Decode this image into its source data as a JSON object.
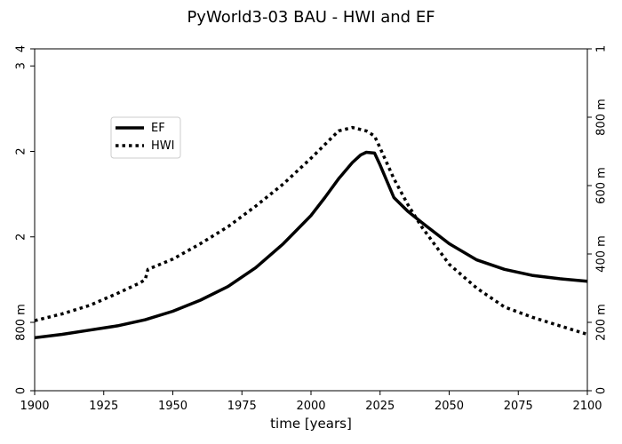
{
  "chart_data": {
    "type": "line",
    "title": "PyWorld3-03 BAU - HWI and EF",
    "xlabel": "time [years]",
    "xlim": [
      1900,
      2100
    ],
    "x_ticks": [
      {
        "value": 1900,
        "label": "1900"
      },
      {
        "value": 1925,
        "label": "1925"
      },
      {
        "value": 1950,
        "label": "1950"
      },
      {
        "value": 1975,
        "label": "1975"
      },
      {
        "value": 2000,
        "label": "2000"
      },
      {
        "value": 2025,
        "label": "2025"
      },
      {
        "value": 2050,
        "label": "2050"
      },
      {
        "value": 2075,
        "label": "2075"
      },
      {
        "value": 2100,
        "label": "2100"
      }
    ],
    "left_axis": {
      "ylim": [
        0,
        4
      ],
      "ticks": [
        {
          "value": 0,
          "label": "0"
        },
        {
          "value": 0.8,
          "label": "800 m"
        },
        {
          "value": 1.8,
          "label": "2"
        },
        {
          "value": 2.8,
          "label": "2"
        },
        {
          "value": 3.8,
          "label": "3"
        },
        {
          "value": 4.8,
          "label": "4"
        }
      ]
    },
    "right_axis": {
      "ylim": [
        0,
        1
      ],
      "ticks": [
        {
          "value": 0,
          "label": "0"
        },
        {
          "value": 0.2,
          "label": "200 m"
        },
        {
          "value": 0.4,
          "label": "400 m"
        },
        {
          "value": 0.6,
          "label": "600 m"
        },
        {
          "value": 0.8,
          "label": "800 m"
        },
        {
          "value": 1.0,
          "label": "1"
        }
      ]
    },
    "legend": {
      "position": "upper-left"
    },
    "series": [
      {
        "name": "EF",
        "axis": "left",
        "style": "solid",
        "color": "#000000",
        "x": [
          1900,
          1910,
          1920,
          1930,
          1940,
          1950,
          1960,
          1970,
          1980,
          1990,
          2000,
          2005,
          2010,
          2015,
          2018,
          2020,
          2023,
          2025,
          2030,
          2035,
          2040,
          2050,
          2060,
          2070,
          2080,
          2090,
          2100
        ],
        "values": [
          0.62,
          0.66,
          0.71,
          0.76,
          0.83,
          0.93,
          1.06,
          1.22,
          1.44,
          1.72,
          2.05,
          2.26,
          2.48,
          2.67,
          2.76,
          2.79,
          2.78,
          2.64,
          2.26,
          2.1,
          1.97,
          1.72,
          1.53,
          1.42,
          1.35,
          1.31,
          1.28
        ]
      },
      {
        "name": "HWI",
        "axis": "right",
        "style": "dotted",
        "color": "#000000",
        "x": [
          1900,
          1910,
          1920,
          1930,
          1938,
          1940,
          1941,
          1950,
          1960,
          1970,
          1980,
          1990,
          2000,
          2005,
          2010,
          2015,
          2020,
          2023,
          2025,
          2030,
          2035,
          2040,
          2050,
          2060,
          2070,
          2080,
          2090,
          2100
        ],
        "values": [
          0.205,
          0.225,
          0.25,
          0.285,
          0.315,
          0.325,
          0.355,
          0.385,
          0.43,
          0.48,
          0.54,
          0.605,
          0.68,
          0.72,
          0.76,
          0.77,
          0.76,
          0.745,
          0.71,
          0.62,
          0.545,
          0.48,
          0.37,
          0.3,
          0.245,
          0.215,
          0.19,
          0.165
        ]
      }
    ]
  }
}
